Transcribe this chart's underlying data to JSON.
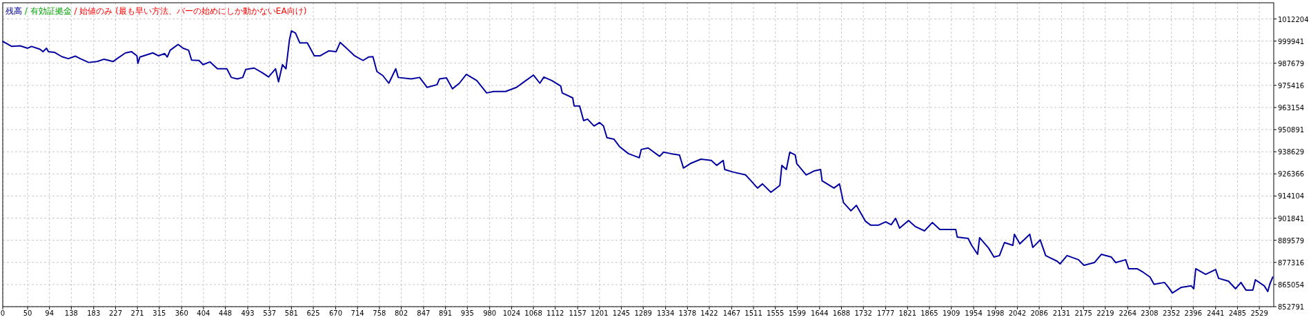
{
  "chart_data": {
    "type": "line",
    "legend": "top left",
    "grid": true,
    "annotations": [
      "/ 有効証拠金",
      "/ 始値のみ (最も早い方法、バーの始めにしか動かないEA向け)"
    ],
    "xlim": [
      0,
      2558
    ],
    "ylim": [
      852791,
      1021180
    ],
    "xticks": [
      0,
      50,
      94,
      138,
      183,
      227,
      271,
      315,
      360,
      404,
      448,
      493,
      537,
      581,
      625,
      670,
      714,
      758,
      802,
      847,
      891,
      935,
      980,
      1024,
      1068,
      1112,
      1157,
      1201,
      1245,
      1289,
      1334,
      1378,
      1422,
      1467,
      1511,
      1555,
      1599,
      1644,
      1688,
      1732,
      1777,
      1821,
      1865,
      1909,
      1954,
      1998,
      2042,
      2086,
      2131,
      2175,
      2219,
      2264,
      2308,
      2352,
      2396,
      2441,
      2485,
      2529
    ],
    "yticks": [
      852791,
      865054,
      877316,
      889579,
      901841,
      914104,
      926366,
      938629,
      950891,
      963154,
      975416,
      987679,
      999941,
      1012204
    ],
    "series": [
      {
        "name": "残高",
        "color": "#0000a0",
        "x": [
          0,
          6,
          18,
          35,
          50,
          58,
          75,
          81,
          88,
          92,
          104,
          119,
          132,
          146,
          156,
          173,
          190,
          204,
          222,
          230,
          247,
          259,
          270,
          272,
          276,
          302,
          313,
          326,
          331,
          337,
          353,
          363,
          374,
          380,
          395,
          403,
          417,
          432,
          451,
          460,
          472,
          483,
          489,
          506,
          523,
          535,
          549,
          555,
          563,
          570,
          577,
          581,
          589,
          598,
          613,
          627,
          639,
          656,
          671,
          679,
          690,
          708,
          725,
          736,
          745,
          753,
          765,
          777,
          791,
          796,
          822,
          839,
          854,
          874,
          879,
          893,
          905,
          919,
          933,
          954,
          974,
          988,
          1012,
          1034,
          1049,
          1068,
          1081,
          1089,
          1105,
          1123,
          1126,
          1147,
          1150,
          1161,
          1169,
          1177,
          1190,
          1201,
          1209,
          1216,
          1230,
          1241,
          1259,
          1281,
          1285,
          1299,
          1322,
          1330,
          1344,
          1362,
          1370,
          1384,
          1405,
          1426,
          1437,
          1450,
          1453,
          1471,
          1495,
          1506,
          1519,
          1529,
          1546,
          1564,
          1568,
          1577,
          1584,
          1595,
          1598,
          1617,
          1633,
          1646,
          1649,
          1673,
          1684,
          1692,
          1707,
          1718,
          1736,
          1747,
          1762,
          1777,
          1788,
          1797,
          1805,
          1823,
          1837,
          1855,
          1871,
          1886,
          1903,
          1918,
          1921,
          1943,
          1950,
          1962,
          1966,
          1984,
          1995,
          2006,
          2016,
          2033,
          2036,
          2047,
          2067,
          2073,
          2088,
          2099,
          2122,
          2128,
          2142,
          2165,
          2176,
          2197,
          2211,
          2231,
          2240,
          2260,
          2266,
          2283,
          2295,
          2309,
          2317,
          2338,
          2346,
          2354,
          2372,
          2392,
          2397,
          2401,
          2421,
          2441,
          2447,
          2467,
          2481,
          2492,
          2502,
          2516,
          2521,
          2539,
          2546,
          2550,
          2556
        ],
        "values": [
          999700,
          998900,
          997000,
          997300,
          996000,
          997000,
          995400,
          994100,
          996000,
          994100,
          993700,
          991300,
          990200,
          991600,
          990200,
          988100,
          988600,
          989900,
          988600,
          990200,
          993400,
          994100,
          991800,
          987600,
          991100,
          993400,
          991800,
          993000,
          991100,
          994900,
          998100,
          996000,
          994900,
          989400,
          989200,
          986900,
          988400,
          984600,
          984600,
          979800,
          979000,
          979800,
          984200,
          985000,
          982300,
          980100,
          984600,
          977400,
          986900,
          984600,
          1000600,
          1005600,
          1004400,
          998900,
          998900,
          991800,
          991800,
          994500,
          994100,
          999200,
          996500,
          991800,
          989200,
          991100,
          991300,
          983100,
          980800,
          976600,
          984600,
          979800,
          979000,
          979800,
          974300,
          975800,
          979000,
          979600,
          973500,
          976600,
          981500,
          978100,
          971200,
          972000,
          972000,
          974300,
          977300,
          981100,
          976600,
          980000,
          978100,
          975000,
          971200,
          968500,
          964000,
          964000,
          955900,
          956700,
          952900,
          954800,
          952900,
          946400,
          945600,
          941600,
          937600,
          935300,
          939900,
          940700,
          936100,
          938400,
          937600,
          936800,
          929600,
          932100,
          934500,
          933800,
          931100,
          933800,
          928800,
          927300,
          925800,
          922500,
          918500,
          920800,
          916200,
          920000,
          931100,
          928800,
          938400,
          936800,
          932100,
          925800,
          928000,
          928800,
          922500,
          918500,
          920800,
          910500,
          905900,
          908900,
          900200,
          897900,
          897900,
          899800,
          898200,
          901700,
          896300,
          900500,
          897100,
          894800,
          899400,
          895600,
          895600,
          895600,
          891400,
          890600,
          886800,
          881800,
          891000,
          885300,
          880300,
          881100,
          888300,
          886800,
          892900,
          887600,
          892900,
          885600,
          889800,
          881100,
          878000,
          876500,
          881100,
          878800,
          875700,
          877200,
          881800,
          880300,
          877200,
          878800,
          873800,
          873800,
          871900,
          869200,
          865200,
          866200,
          863500,
          860400,
          863500,
          864300,
          862700,
          873800,
          870700,
          873400,
          868500,
          866900,
          862700,
          866200,
          862000,
          862000,
          867700,
          864300,
          861200,
          865200,
          869200
        ]
      }
    ]
  }
}
